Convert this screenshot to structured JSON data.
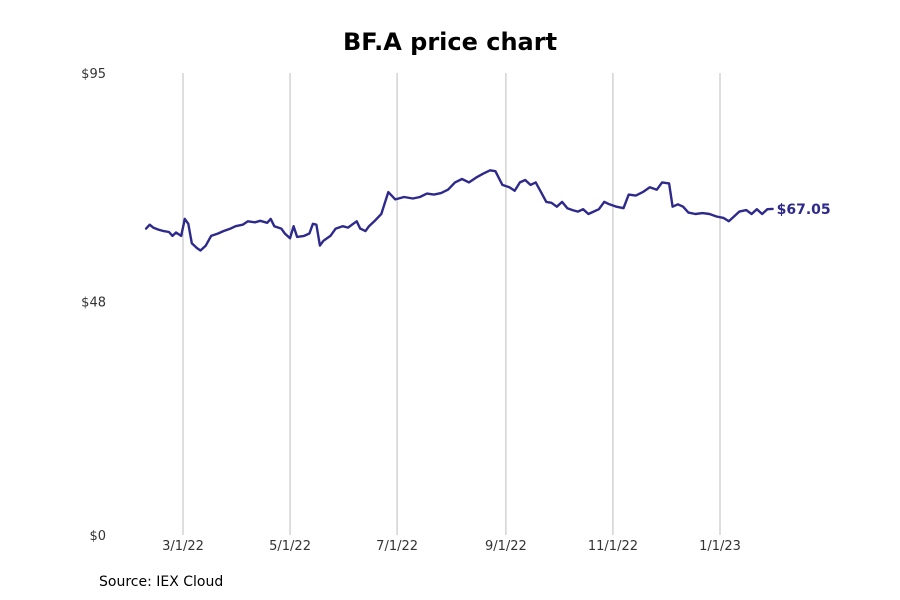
{
  "title": "BF.A price chart",
  "source": "Source: IEX Cloud",
  "colors": {
    "line": "#2e2a8c",
    "grid": "#bdbdbd",
    "tick_text": "#333333"
  },
  "chart_data": {
    "type": "line",
    "title": "BF.A price chart",
    "xlabel": "",
    "ylabel": "",
    "ylim": [
      0,
      95
    ],
    "y_ticks": [
      {
        "value": 0,
        "label": "$0"
      },
      {
        "value": 48,
        "label": "$48"
      },
      {
        "value": 95,
        "label": "$95"
      }
    ],
    "x_ticks": [
      {
        "date": "2022-03-01",
        "label": "3/1/22"
      },
      {
        "date": "2022-05-01",
        "label": "5/1/22"
      },
      {
        "date": "2022-07-01",
        "label": "7/1/22"
      },
      {
        "date": "2022-09-01",
        "label": "9/1/22"
      },
      {
        "date": "2022-11-01",
        "label": "11/1/22"
      },
      {
        "date": "2023-01-01",
        "label": "1/1/23"
      }
    ],
    "grid": "vertical",
    "last_value_label": "$67.05",
    "series": [
      {
        "points": [
          [
            "2022-02-08",
            63.0
          ],
          [
            "2022-02-10",
            63.8
          ],
          [
            "2022-02-12",
            63.2
          ],
          [
            "2022-02-15",
            62.8
          ],
          [
            "2022-02-18",
            62.5
          ],
          [
            "2022-02-21",
            62.3
          ],
          [
            "2022-02-23",
            61.5
          ],
          [
            "2022-02-25",
            62.2
          ],
          [
            "2022-02-28",
            61.5
          ],
          [
            "2022-03-02",
            65.0
          ],
          [
            "2022-03-04",
            64.0
          ],
          [
            "2022-03-06",
            60.0
          ],
          [
            "2022-03-09",
            59.0
          ],
          [
            "2022-03-11",
            58.5
          ],
          [
            "2022-03-14",
            59.5
          ],
          [
            "2022-03-17",
            61.5
          ],
          [
            "2022-03-21",
            62.0
          ],
          [
            "2022-03-24",
            62.5
          ],
          [
            "2022-03-28",
            63.0
          ],
          [
            "2022-03-31",
            63.5
          ],
          [
            "2022-04-04",
            63.8
          ],
          [
            "2022-04-07",
            64.5
          ],
          [
            "2022-04-11",
            64.3
          ],
          [
            "2022-04-14",
            64.6
          ],
          [
            "2022-04-18",
            64.2
          ],
          [
            "2022-04-20",
            65.0
          ],
          [
            "2022-04-22",
            63.5
          ],
          [
            "2022-04-26",
            63.0
          ],
          [
            "2022-04-28",
            62.0
          ],
          [
            "2022-05-01",
            61.0
          ],
          [
            "2022-05-03",
            63.5
          ],
          [
            "2022-05-05",
            61.3
          ],
          [
            "2022-05-09",
            61.5
          ],
          [
            "2022-05-12",
            62.0
          ],
          [
            "2022-05-14",
            64.0
          ],
          [
            "2022-05-16",
            63.8
          ],
          [
            "2022-05-18",
            59.5
          ],
          [
            "2022-05-20",
            60.5
          ],
          [
            "2022-05-24",
            61.5
          ],
          [
            "2022-05-27",
            63.0
          ],
          [
            "2022-05-31",
            63.5
          ],
          [
            "2022-06-03",
            63.2
          ],
          [
            "2022-06-06",
            64.0
          ],
          [
            "2022-06-08",
            64.5
          ],
          [
            "2022-06-10",
            63.0
          ],
          [
            "2022-06-13",
            62.5
          ],
          [
            "2022-06-15",
            63.5
          ],
          [
            "2022-06-18",
            64.5
          ],
          [
            "2022-06-22",
            66.0
          ],
          [
            "2022-06-26",
            70.5
          ],
          [
            "2022-06-30",
            69.0
          ],
          [
            "2022-07-05",
            69.5
          ],
          [
            "2022-07-10",
            69.2
          ],
          [
            "2022-07-14",
            69.5
          ],
          [
            "2022-07-18",
            70.2
          ],
          [
            "2022-07-22",
            70.0
          ],
          [
            "2022-07-26",
            70.3
          ],
          [
            "2022-07-30",
            71.0
          ],
          [
            "2022-08-03",
            72.5
          ],
          [
            "2022-08-07",
            73.2
          ],
          [
            "2022-08-11",
            72.5
          ],
          [
            "2022-08-15",
            73.5
          ],
          [
            "2022-08-19",
            74.3
          ],
          [
            "2022-08-23",
            75.0
          ],
          [
            "2022-08-26",
            74.8
          ],
          [
            "2022-08-30",
            72.0
          ],
          [
            "2022-09-03",
            71.5
          ],
          [
            "2022-09-06",
            70.8
          ],
          [
            "2022-09-09",
            72.5
          ],
          [
            "2022-09-12",
            73.0
          ],
          [
            "2022-09-15",
            72.0
          ],
          [
            "2022-09-18",
            72.5
          ],
          [
            "2022-09-21",
            70.5
          ],
          [
            "2022-09-24",
            68.5
          ],
          [
            "2022-09-27",
            68.3
          ],
          [
            "2022-09-30",
            67.5
          ],
          [
            "2022-10-03",
            68.5
          ],
          [
            "2022-10-06",
            67.2
          ],
          [
            "2022-10-09",
            66.8
          ],
          [
            "2022-10-12",
            66.5
          ],
          [
            "2022-10-15",
            67.0
          ],
          [
            "2022-10-18",
            66.0
          ],
          [
            "2022-10-21",
            66.5
          ],
          [
            "2022-10-24",
            67.0
          ],
          [
            "2022-10-27",
            68.5
          ],
          [
            "2022-10-30",
            68.0
          ],
          [
            "2022-11-03",
            67.5
          ],
          [
            "2022-11-07",
            67.2
          ],
          [
            "2022-11-10",
            70.0
          ],
          [
            "2022-11-14",
            69.8
          ],
          [
            "2022-11-18",
            70.5
          ],
          [
            "2022-11-22",
            71.5
          ],
          [
            "2022-11-26",
            71.0
          ],
          [
            "2022-11-29",
            72.5
          ],
          [
            "2022-12-03",
            72.3
          ],
          [
            "2022-12-05",
            67.5
          ],
          [
            "2022-12-08",
            68.0
          ],
          [
            "2022-12-11",
            67.5
          ],
          [
            "2022-12-14",
            66.3
          ],
          [
            "2022-12-18",
            66.0
          ],
          [
            "2022-12-22",
            66.2
          ],
          [
            "2022-12-26",
            66.0
          ],
          [
            "2022-12-30",
            65.5
          ],
          [
            "2023-01-03",
            65.2
          ],
          [
            "2023-01-06",
            64.5
          ],
          [
            "2023-01-09",
            65.5
          ],
          [
            "2023-01-12",
            66.5
          ],
          [
            "2023-01-16",
            66.8
          ],
          [
            "2023-01-19",
            66.0
          ],
          [
            "2023-01-22",
            67.0
          ],
          [
            "2023-01-25",
            66.0
          ],
          [
            "2023-01-28",
            67.0
          ],
          [
            "2023-01-31",
            67.05
          ]
        ]
      }
    ]
  }
}
